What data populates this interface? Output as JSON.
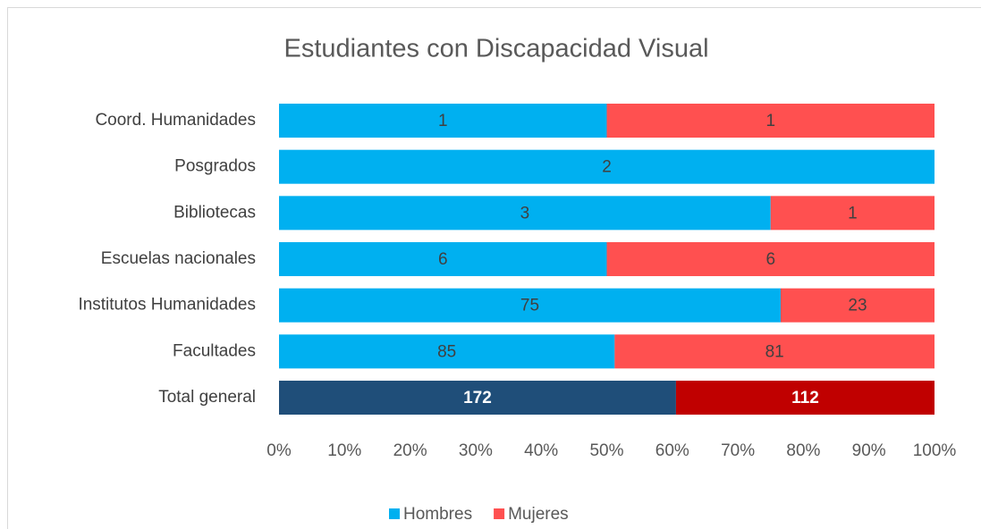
{
  "chart_data": {
    "type": "stacked_percent_bar",
    "orientation": "horizontal",
    "title": "Estudiantes con Discapacidad Visual",
    "categories": [
      "Coord. Humanidades",
      "Posgrados",
      "Bibliotecas",
      "Escuelas nacionales",
      "Institutos Humanidades",
      "Facultades",
      "Total general"
    ],
    "series": [
      {
        "name": "Hombres",
        "color": "#00b0f0",
        "colors": [
          "#00b0f0",
          "#00b0f0",
          "#00b0f0",
          "#00b0f0",
          "#00b0f0",
          "#00b0f0",
          "#1f4e79"
        ],
        "values": [
          1,
          2,
          3,
          6,
          75,
          85,
          172
        ]
      },
      {
        "name": "Mujeres",
        "color": "#ff5050",
        "colors": [
          "#ff5050",
          "#ff5050",
          "#ff5050",
          "#ff5050",
          "#ff5050",
          "#ff5050",
          "#c00000"
        ],
        "values": [
          1,
          0,
          1,
          6,
          23,
          81,
          112
        ]
      }
    ],
    "xlim": [
      0,
      100
    ],
    "xticks": [
      {
        "value": 0,
        "label": "0%"
      },
      {
        "value": 10,
        "label": "10%"
      },
      {
        "value": 20,
        "label": "20%"
      },
      {
        "value": 30,
        "label": "30%"
      },
      {
        "value": 40,
        "label": "40%"
      },
      {
        "value": 50,
        "label": "50%"
      },
      {
        "value": 60,
        "label": "60%"
      },
      {
        "value": 70,
        "label": "70%"
      },
      {
        "value": 80,
        "label": "80%"
      },
      {
        "value": 90,
        "label": "90%"
      },
      {
        "value": 100,
        "label": "100%"
      }
    ],
    "grid": false,
    "legend": "bottom"
  }
}
